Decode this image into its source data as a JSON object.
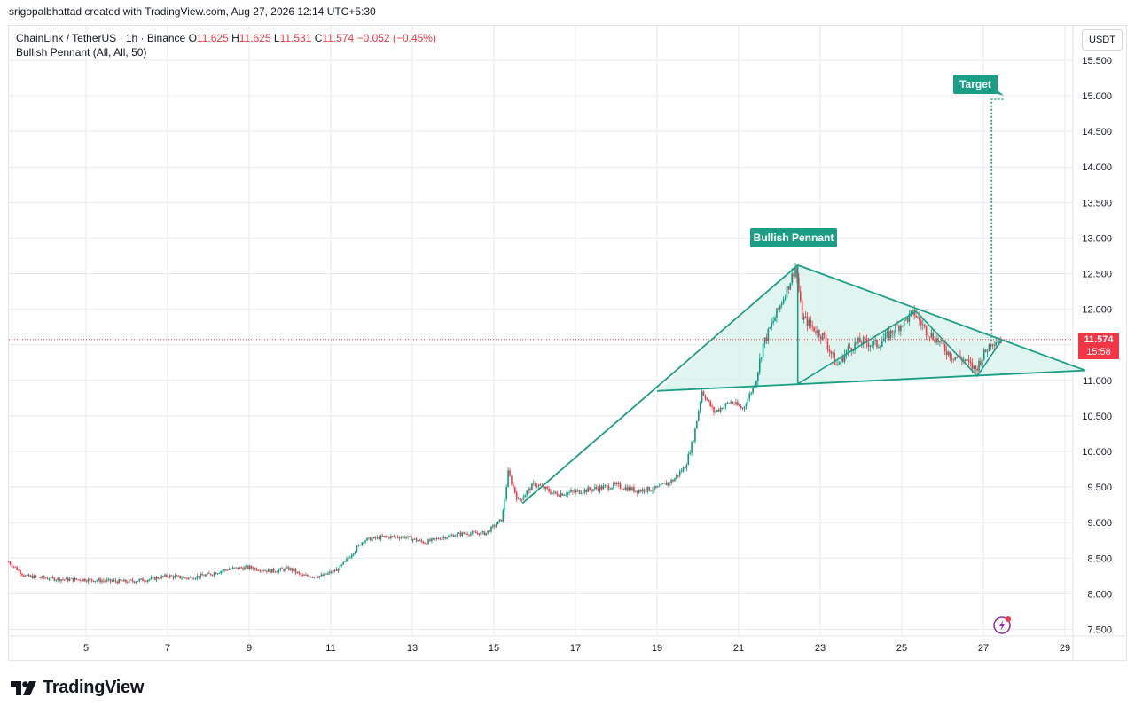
{
  "header": {
    "credit": "srigopalbhattad created with TradingView.com, Aug 27, 2026 12:14 UTC+5:30"
  },
  "legend": {
    "symbol": "ChainLink / TetherUS · 1h · Binance",
    "open_label": "O",
    "open": "11.625",
    "high_label": "H",
    "high": "11.625",
    "low_label": "L",
    "low": "11.531",
    "close_label": "C",
    "close": "11.574",
    "change": "−0.052 (−0.45%)",
    "indicator": "Bullish Pennant (All, All, 50)"
  },
  "axis": {
    "currency": "USDT"
  },
  "last_price": {
    "price": "11.574",
    "countdown": "15:58"
  },
  "brand": {
    "name": "TradingView"
  },
  "colors": {
    "up": "#089981",
    "down": "#f23645",
    "pattern": "#1a9e86",
    "pattern_fill": "#d9f2ec",
    "grid": "#e6e8ee"
  },
  "chart_data": {
    "type": "candlestick",
    "ylim": [
      7.3,
      16.0
    ],
    "y_ticks": [
      "15.500",
      "15.000",
      "14.500",
      "14.000",
      "13.500",
      "13.000",
      "12.500",
      "12.000",
      "11.500",
      "11.000",
      "10.500",
      "10.000",
      "9.500",
      "9.000",
      "8.500",
      "8.000",
      "7.500"
    ],
    "x_ticks": [
      "5",
      "7",
      "9",
      "11",
      "13",
      "15",
      "17",
      "19",
      "21",
      "23",
      "25",
      "27",
      "29"
    ],
    "x_range": [
      3.1,
      29.5
    ],
    "price_path": [
      [
        3.1,
        8.45
      ],
      [
        3.5,
        8.25
      ],
      [
        4.0,
        8.22
      ],
      [
        4.5,
        8.2
      ],
      [
        5.0,
        8.2
      ],
      [
        5.5,
        8.18
      ],
      [
        6.0,
        8.17
      ],
      [
        6.5,
        8.2
      ],
      [
        7.0,
        8.25
      ],
      [
        7.5,
        8.22
      ],
      [
        8.0,
        8.27
      ],
      [
        8.5,
        8.35
      ],
      [
        9.0,
        8.37
      ],
      [
        9.5,
        8.32
      ],
      [
        10.0,
        8.35
      ],
      [
        10.3,
        8.25
      ],
      [
        10.8,
        8.25
      ],
      [
        11.2,
        8.35
      ],
      [
        11.5,
        8.55
      ],
      [
        11.8,
        8.75
      ],
      [
        12.3,
        8.8
      ],
      [
        12.8,
        8.8
      ],
      [
        13.3,
        8.72
      ],
      [
        13.8,
        8.8
      ],
      [
        14.3,
        8.85
      ],
      [
        14.8,
        8.85
      ],
      [
        15.2,
        9.05
      ],
      [
        15.35,
        9.7
      ],
      [
        15.6,
        9.3
      ],
      [
        16.0,
        9.55
      ],
      [
        16.5,
        9.4
      ],
      [
        17.0,
        9.43
      ],
      [
        17.5,
        9.48
      ],
      [
        18.0,
        9.52
      ],
      [
        18.5,
        9.45
      ],
      [
        19.0,
        9.48
      ],
      [
        19.4,
        9.6
      ],
      [
        19.7,
        9.8
      ],
      [
        19.9,
        10.2
      ],
      [
        20.1,
        10.85
      ],
      [
        20.4,
        10.55
      ],
      [
        20.8,
        10.7
      ],
      [
        21.1,
        10.6
      ],
      [
        21.4,
        10.95
      ],
      [
        21.6,
        11.5
      ],
      [
        21.9,
        11.9
      ],
      [
        22.2,
        12.3
      ],
      [
        22.4,
        12.6
      ],
      [
        22.55,
        11.9
      ],
      [
        22.8,
        11.75
      ],
      [
        23.1,
        11.6
      ],
      [
        23.4,
        11.2
      ],
      [
        23.7,
        11.45
      ],
      [
        24.0,
        11.55
      ],
      [
        24.4,
        11.5
      ],
      [
        24.8,
        11.7
      ],
      [
        25.3,
        11.95
      ],
      [
        25.6,
        11.7
      ],
      [
        25.9,
        11.55
      ],
      [
        26.2,
        11.35
      ],
      [
        26.5,
        11.3
      ],
      [
        26.8,
        11.15
      ],
      [
        27.0,
        11.35
      ],
      [
        27.2,
        11.55
      ],
      [
        27.45,
        11.574
      ]
    ],
    "pattern": {
      "label": "Bullish Pennant",
      "pole": [
        [
          15.7,
          9.27
        ],
        [
          22.45,
          12.62
        ]
      ],
      "pennant_upper": [
        [
          22.45,
          12.62
        ],
        [
          29.5,
          11.14
        ]
      ],
      "pennant_lower": [
        [
          19.0,
          10.85
        ],
        [
          29.5,
          11.14
        ]
      ],
      "zigzag": [
        [
          22.45,
          12.62
        ],
        [
          22.45,
          10.95
        ],
        [
          25.35,
          11.97
        ],
        [
          26.85,
          11.06
        ],
        [
          27.45,
          11.57
        ]
      ],
      "target_label": "Target",
      "target_level": 14.95,
      "target_x": 27.2
    }
  }
}
